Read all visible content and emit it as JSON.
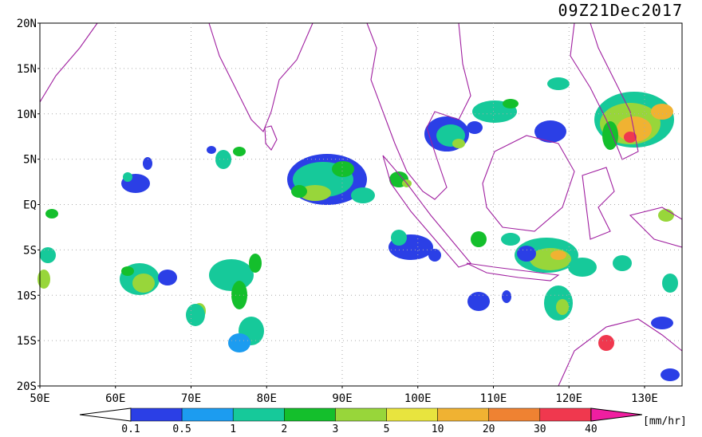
{
  "header": {
    "title": "09Z21Dec2017"
  },
  "map": {
    "lat_labels": [
      "20N",
      "15N",
      "10N",
      "5N",
      "EQ",
      "5S",
      "10S",
      "15S",
      "20S"
    ],
    "lon_labels": [
      "50E",
      "60E",
      "70E",
      "80E",
      "90E",
      "100E",
      "110E",
      "120E",
      "130E"
    ],
    "grid": true
  },
  "colorbar": {
    "labels": [
      "0.1",
      "0.5",
      "1",
      "2",
      "3",
      "5",
      "10",
      "20",
      "30",
      "40"
    ],
    "colors": [
      "#ffffff",
      "#2b3fe6",
      "#1c9cf0",
      "#16c99a",
      "#14bf2c",
      "#98d63a",
      "#e8e43e",
      "#f0b232",
      "#ef8232",
      "#f0384e",
      "#f01ea0"
    ],
    "unit": "[mm/hr]"
  }
}
